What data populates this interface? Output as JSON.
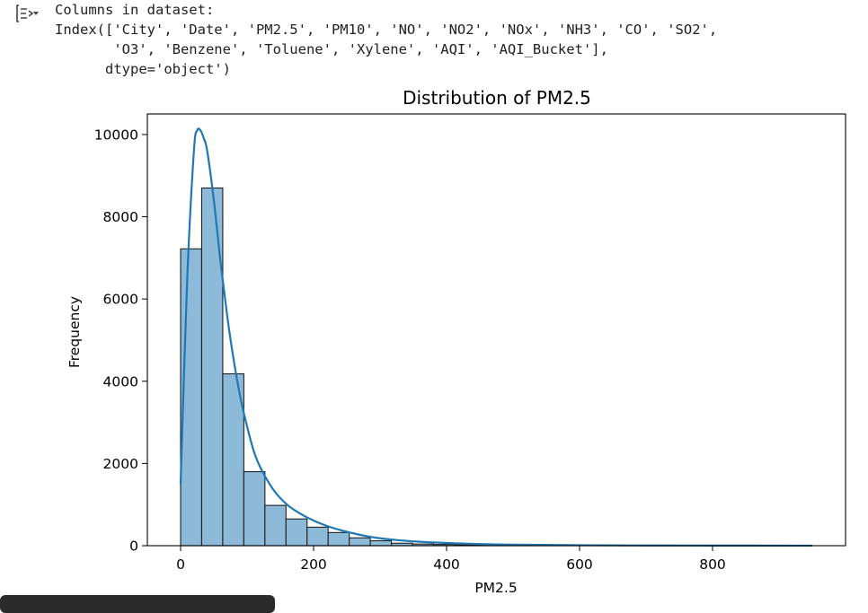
{
  "console": {
    "lines": [
      "Columns in dataset:",
      "Index(['City', 'Date', 'PM2.5', 'PM10', 'NO', 'NO2', 'NOx', 'NH3', 'CO', 'SO2',",
      "       'O3', 'Benzene', 'Toluene', 'Xylene', 'AQI', 'AQI_Bucket'],",
      "      dtype='object')"
    ]
  },
  "colors": {
    "bar_fill": "#8ebad9",
    "bar_edge": "#1f1f1f",
    "kde_line": "#1f77b4"
  },
  "chart_data": {
    "type": "bar",
    "title": "Distribution of PM2.5",
    "xlabel": "PM2.5",
    "ylabel": "Frequency",
    "xlim": [
      -50,
      1000
    ],
    "ylim": [
      0,
      10500
    ],
    "xticks": [
      0,
      200,
      400,
      600,
      800
    ],
    "yticks": [
      0,
      2000,
      4000,
      6000,
      8000,
      10000
    ],
    "grid": false,
    "bin_edges": [
      0,
      31.7,
      63.4,
      95.1,
      126.8,
      158.5,
      190.2,
      221.9,
      253.6,
      285.3,
      317,
      348.7,
      380.4,
      412.1,
      443.8,
      475.5,
      507.2,
      538.9,
      570.6,
      602.3,
      634,
      665.7,
      697.4,
      729.1,
      760.8,
      792.5,
      824.2,
      855.9,
      887.6,
      919.3,
      951
    ],
    "counts": [
      7220,
      8700,
      4180,
      1800,
      980,
      650,
      450,
      320,
      190,
      120,
      60,
      40,
      30,
      20,
      15,
      10,
      8,
      6,
      5,
      4,
      3,
      3,
      2,
      2,
      1,
      1,
      1,
      1,
      1,
      1
    ],
    "kde": {
      "x": [
        0,
        10,
        20,
        25,
        30,
        35,
        40,
        50,
        60,
        70,
        80,
        90,
        100,
        110,
        120,
        140,
        160,
        180,
        200,
        220,
        240,
        260,
        280,
        300,
        330,
        360,
        400,
        450,
        500,
        600,
        700,
        800,
        950
      ],
      "y": [
        1500,
        6500,
        9600,
        10100,
        10100,
        9900,
        9600,
        8400,
        6900,
        5600,
        4500,
        3600,
        2900,
        2300,
        1900,
        1350,
        1000,
        780,
        610,
        480,
        380,
        300,
        230,
        180,
        130,
        95,
        65,
        40,
        25,
        12,
        6,
        3,
        1
      ]
    }
  }
}
